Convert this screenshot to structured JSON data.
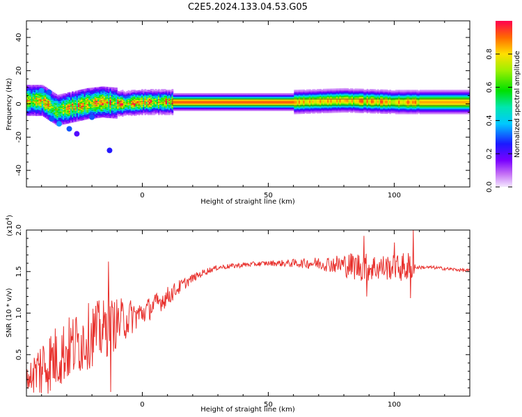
{
  "figure": {
    "title": "C2E5.2024.133.04.53.G05"
  },
  "chart_data": [
    {
      "type": "heatmap",
      "title": "",
      "xlabel": "Height of straight line (km)",
      "ylabel": "Frequency (Hz)",
      "xlim": [
        -46,
        130
      ],
      "ylim": [
        -50,
        50
      ],
      "xticks": [
        0,
        50,
        100
      ],
      "yticks": [
        -40,
        -20,
        0,
        20,
        40
      ],
      "ridge": [
        {
          "x": -46,
          "f": 2
        },
        {
          "x": -40,
          "f": 2
        },
        {
          "x": -34,
          "f": -4
        },
        {
          "x": -28,
          "f": -2
        },
        {
          "x": -22,
          "f": 0
        },
        {
          "x": -16,
          "f": 1
        },
        {
          "x": -8,
          "f": 0
        },
        {
          "x": 0,
          "f": 1
        },
        {
          "x": 12,
          "f": 1
        },
        {
          "x": 60,
          "f": 1
        },
        {
          "x": 80,
          "f": 2
        },
        {
          "x": 100,
          "f": 1
        },
        {
          "x": 130,
          "f": 1
        }
      ],
      "colorbar": {
        "label": "Normalized spectral amplitude",
        "range": [
          0,
          1
        ],
        "ticks": [
          0.0,
          0.2,
          0.4,
          0.6,
          0.8
        ]
      }
    },
    {
      "type": "line",
      "title": "",
      "xlabel": "Height of straight line (km)",
      "ylabel": "SNR (10 * v/v)",
      "y_scale_label": "(x10",
      "y_scale_exp": "4",
      "y_multiplier": 10000,
      "xlim": [
        -46,
        130
      ],
      "ylim": [
        0,
        2.0
      ],
      "xticks": [
        0,
        50,
        100
      ],
      "yticks": [
        0.5,
        1.0,
        1.5,
        2.0
      ],
      "series": [
        {
          "name": "SNR",
          "color": "#e8302c",
          "envelope": [
            {
              "x": -46,
              "y": 0.2
            },
            {
              "x": -40,
              "y": 0.35
            },
            {
              "x": -35,
              "y": 0.45
            },
            {
              "x": -30,
              "y": 0.55
            },
            {
              "x": -25,
              "y": 0.65
            },
            {
              "x": -20,
              "y": 0.75
            },
            {
              "x": -15,
              "y": 0.8
            },
            {
              "x": -10,
              "y": 0.88
            },
            {
              "x": -5,
              "y": 0.95
            },
            {
              "x": 0,
              "y": 1.0
            },
            {
              "x": 5,
              "y": 1.1
            },
            {
              "x": 10,
              "y": 1.2
            },
            {
              "x": 15,
              "y": 1.32
            },
            {
              "x": 20,
              "y": 1.42
            },
            {
              "x": 25,
              "y": 1.5
            },
            {
              "x": 30,
              "y": 1.55
            },
            {
              "x": 40,
              "y": 1.58
            },
            {
              "x": 50,
              "y": 1.6
            },
            {
              "x": 60,
              "y": 1.6
            },
            {
              "x": 70,
              "y": 1.6
            },
            {
              "x": 80,
              "y": 1.58
            },
            {
              "x": 90,
              "y": 1.55
            },
            {
              "x": 100,
              "y": 1.55
            },
            {
              "x": 108,
              "y": 1.55
            },
            {
              "x": 115,
              "y": 1.55
            },
            {
              "x": 122,
              "y": 1.53
            },
            {
              "x": 130,
              "y": 1.51
            }
          ],
          "noise": [
            {
              "x": -46,
              "a": 0.12
            },
            {
              "x": -40,
              "a": 0.4
            },
            {
              "x": -20,
              "a": 0.4
            },
            {
              "x": -13,
              "a": 0.35
            },
            {
              "x": 0,
              "a": 0.15
            },
            {
              "x": 10,
              "a": 0.12
            },
            {
              "x": 20,
              "a": 0.05
            },
            {
              "x": 30,
              "a": 0.03
            },
            {
              "x": 50,
              "a": 0.03
            },
            {
              "x": 65,
              "a": 0.06
            },
            {
              "x": 75,
              "a": 0.1
            },
            {
              "x": 85,
              "a": 0.18
            },
            {
              "x": 100,
              "a": 0.15
            },
            {
              "x": 106,
              "a": 0.2
            },
            {
              "x": 109,
              "a": 0.02
            },
            {
              "x": 130,
              "a": 0.02
            }
          ],
          "spikes": [
            {
              "x": -13.5,
              "y": 1.62
            },
            {
              "x": -12.5,
              "y": 0.05
            },
            {
              "x": 107.5,
              "y": 2.0
            },
            {
              "x": 106.5,
              "y": 1.18
            },
            {
              "x": 88,
              "y": 1.93
            },
            {
              "x": 89,
              "y": 1.2
            },
            {
              "x": 100,
              "y": 1.85
            }
          ]
        }
      ]
    }
  ]
}
